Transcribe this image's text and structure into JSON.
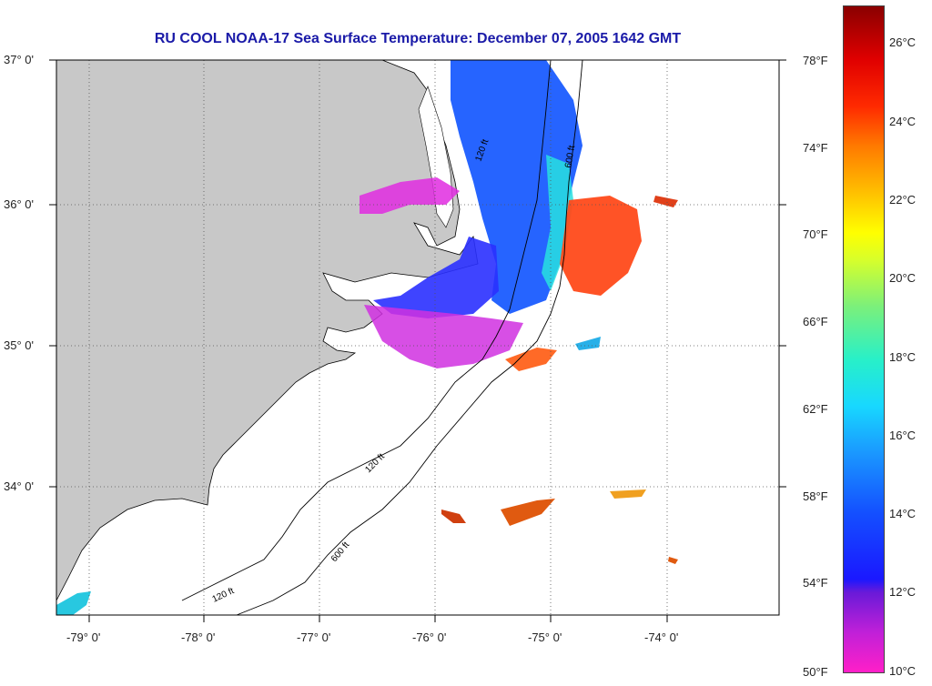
{
  "title": "RU COOL  NOAA-17  Sea Surface Temperature:  December 07, 2005 1642 GMT",
  "lat_labels": [
    "37° 0'",
    "36° 0'",
    "35° 0'",
    "34° 0'"
  ],
  "lon_labels": [
    "-79° 0'",
    "-78° 0'",
    "-77° 0'",
    "-76° 0'",
    "-75° 0'",
    "-74° 0'"
  ],
  "fahrenheit_labels": [
    "78°F",
    "74°F",
    "70°F",
    "66°F",
    "62°F",
    "58°F",
    "54°F",
    "50°F"
  ],
  "celsius_labels": [
    "26°C",
    "24°C",
    "22°C",
    "20°C",
    "18°C",
    "16°C",
    "14°C",
    "12°C",
    "10°C"
  ],
  "isobath_labels": [
    "120 ft",
    "600 ft"
  ],
  "colors": {
    "land": "#c8c8c8",
    "ocean": "#ffffff",
    "title": "#1a1aa8"
  }
}
